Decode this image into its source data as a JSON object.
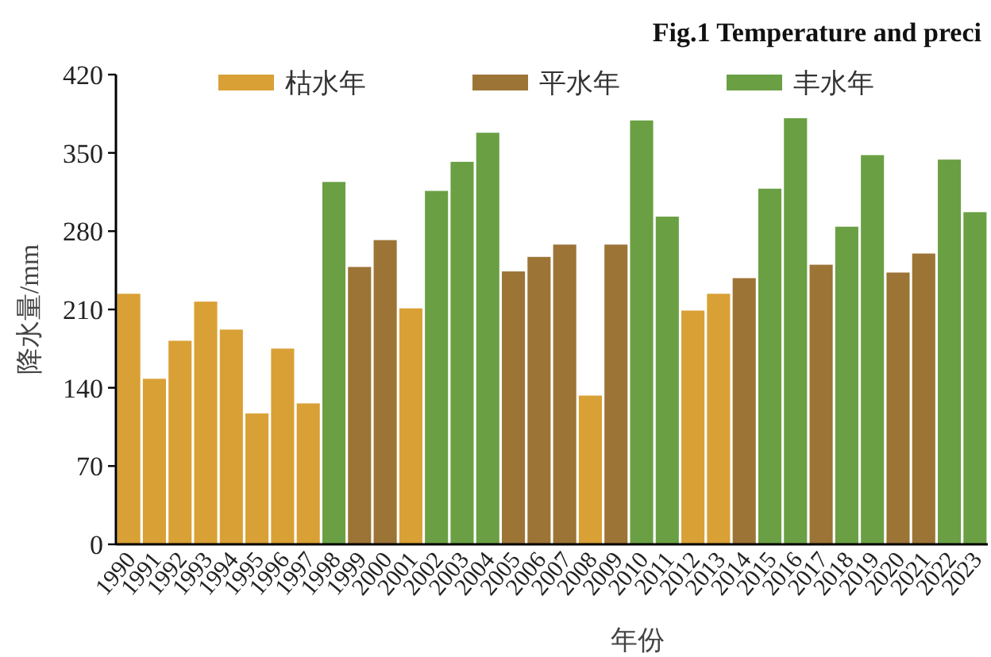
{
  "chart_data": {
    "type": "bar",
    "title": "Fig.1    Temperature and preci",
    "xlabel": "年份",
    "ylabel": "降水量/mm",
    "categories": [
      "1990",
      "1991",
      "1992",
      "1993",
      "1994",
      "1995",
      "1996",
      "1997",
      "1998",
      "1999",
      "2000",
      "2001",
      "2002",
      "2003",
      "2004",
      "2005",
      "2006",
      "2007",
      "2008",
      "2009",
      "2010",
      "2011",
      "2012",
      "2013",
      "2014",
      "2015",
      "2016",
      "2017",
      "2018",
      "2019",
      "2020",
      "2021",
      "2022",
      "2023"
    ],
    "series": [
      {
        "name": "枯水年",
        "color": "#d9a035",
        "values": [
          224,
          148,
          182,
          217,
          192,
          117,
          175,
          126,
          null,
          null,
          null,
          211,
          null,
          null,
          null,
          null,
          null,
          null,
          133,
          null,
          null,
          null,
          209,
          224,
          null,
          null,
          null,
          null,
          null,
          null,
          null,
          null,
          null,
          null
        ]
      },
      {
        "name": "平水年",
        "color": "#9c7436",
        "values": [
          null,
          null,
          null,
          null,
          null,
          null,
          null,
          null,
          null,
          248,
          272,
          null,
          null,
          null,
          null,
          244,
          257,
          268,
          null,
          268,
          null,
          null,
          null,
          null,
          238,
          null,
          null,
          250,
          null,
          null,
          243,
          260,
          null,
          null
        ]
      },
      {
        "name": "丰水年",
        "color": "#6aa043",
        "values": [
          null,
          null,
          null,
          null,
          null,
          null,
          null,
          null,
          324,
          null,
          null,
          null,
          316,
          342,
          368,
          null,
          null,
          null,
          null,
          null,
          379,
          293,
          null,
          null,
          null,
          318,
          381,
          null,
          284,
          348,
          null,
          null,
          344,
          297
        ]
      }
    ],
    "ylim": [
      0,
      420
    ],
    "yticks": [
      0,
      70,
      140,
      210,
      280,
      350,
      420
    ],
    "grid": false,
    "legend": "top"
  }
}
